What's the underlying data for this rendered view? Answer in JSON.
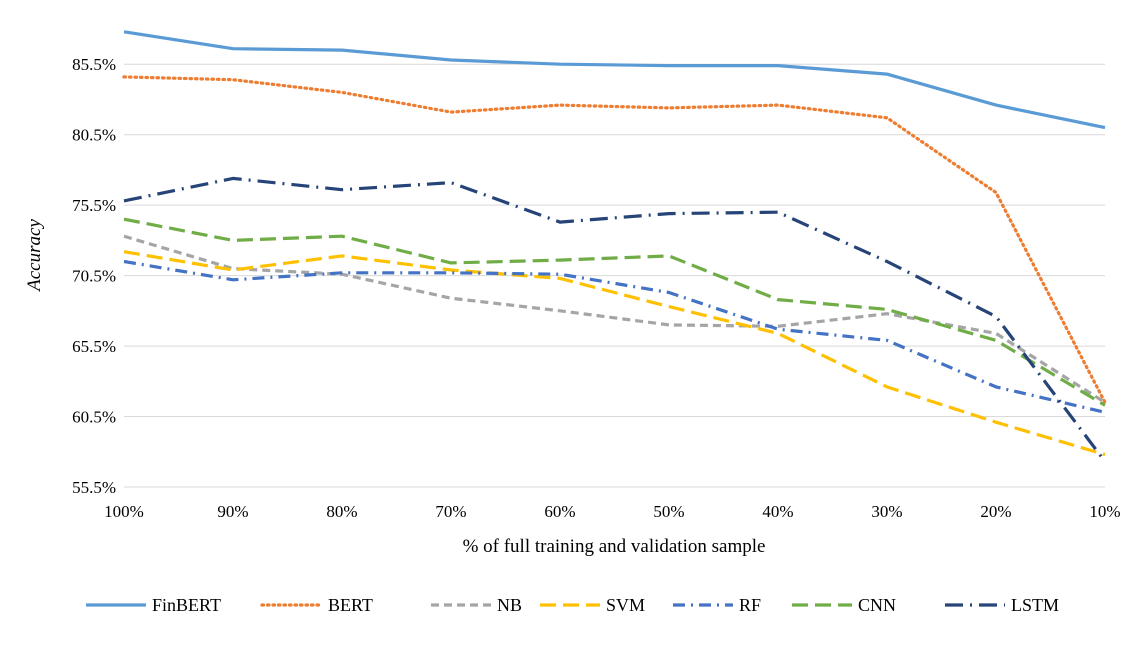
{
  "chart_data": {
    "type": "line",
    "title": "",
    "xlabel": "% of full training and validation sample",
    "ylabel": "Accuracy",
    "categories": [
      "100%",
      "90%",
      "80%",
      "70%",
      "60%",
      "50%",
      "40%",
      "30%",
      "20%",
      "10%"
    ],
    "y_ticks": [
      "55.5%",
      "60.5%",
      "65.5%",
      "70.5%",
      "75.5%",
      "80.5%",
      "85.5%"
    ],
    "ylim": [
      55.5,
      88
    ],
    "grid": "horizontal",
    "legend_position": "bottom",
    "series": [
      {
        "name": "FinBERT",
        "color": "#5b9bd5",
        "dash": "solid",
        "values": [
          87.8,
          86.6,
          86.5,
          85.8,
          85.5,
          85.4,
          85.4,
          84.8,
          82.6,
          81.0
        ]
      },
      {
        "name": "BERT",
        "color": "#ed7d31",
        "dash": "dotted",
        "values": [
          84.6,
          84.4,
          83.5,
          82.1,
          82.6,
          82.4,
          82.6,
          81.7,
          76.4,
          61.5
        ]
      },
      {
        "name": "NB",
        "color": "#a5a5a5",
        "dash": "dash",
        "values": [
          73.3,
          71.0,
          70.6,
          68.9,
          68.0,
          67.0,
          66.9,
          67.8,
          66.4,
          61.5
        ]
      },
      {
        "name": "SVM",
        "color": "#ffc000",
        "dash": "longdash",
        "values": [
          72.2,
          70.9,
          71.9,
          70.9,
          70.3,
          68.3,
          66.4,
          62.6,
          60.1,
          57.8
        ]
      },
      {
        "name": "RF",
        "color": "#4472c4",
        "dash": "dashdot",
        "values": [
          71.5,
          70.2,
          70.7,
          70.7,
          70.6,
          69.3,
          66.7,
          65.9,
          62.6,
          60.8
        ]
      },
      {
        "name": "CNN",
        "color": "#70ad47",
        "dash": "longdash",
        "values": [
          74.5,
          73.0,
          73.3,
          71.4,
          71.6,
          71.9,
          68.8,
          68.1,
          65.9,
          61.3
        ]
      },
      {
        "name": "LSTM",
        "color": "#264478",
        "dash": "longdashdot",
        "values": [
          75.8,
          77.4,
          76.6,
          77.1,
          74.3,
          74.9,
          75.0,
          71.5,
          67.6,
          57.3
        ]
      }
    ]
  }
}
